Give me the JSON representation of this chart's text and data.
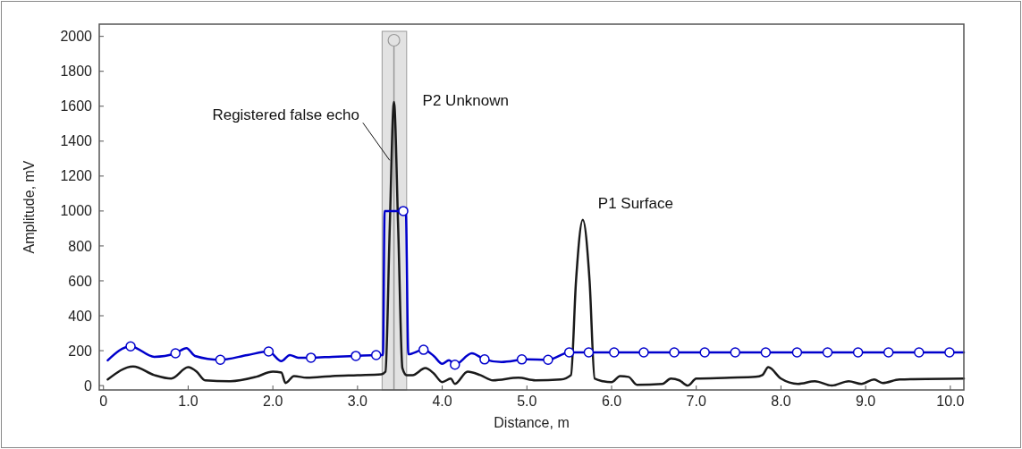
{
  "chart_data": {
    "type": "line",
    "xlabel": "Distance, m",
    "ylabel": "Amplitude, mV",
    "xlim": [
      -0.05,
      10.16
    ],
    "ylim": [
      -25,
      2070
    ],
    "xticks": [
      0,
      {
        "value": 1,
        "label": "1.0"
      },
      {
        "value": 2,
        "label": "2.0"
      },
      {
        "value": 3,
        "label": "3.0"
      },
      {
        "value": 4,
        "label": "4.0"
      },
      {
        "value": 5,
        "label": "5.0"
      },
      {
        "value": 6,
        "label": "6.0"
      },
      {
        "value": 7,
        "label": "7.0"
      },
      {
        "value": 8,
        "label": "8.0"
      },
      {
        "value": 9,
        "label": "9.0"
      },
      {
        "value": 10,
        "label": "10.0"
      }
    ],
    "yticks": [
      0,
      200,
      400,
      600,
      800,
      1000,
      1200,
      1400,
      1600,
      1800,
      2000
    ],
    "grid": false,
    "line_style": "solid",
    "bands": [
      {
        "axis": "x",
        "from": 3.29,
        "to": 3.58,
        "color": "#e2e2e2"
      }
    ],
    "ref_lines": [
      {
        "axis": "x",
        "value": 3.43,
        "color": "#999999"
      }
    ],
    "series": [
      {
        "color": "#1a1a1a",
        "marker": "none",
        "x": [
          0.05,
          0.35,
          0.6,
          0.8,
          1.0,
          1.1,
          1.2,
          1.5,
          1.8,
          2.0,
          2.1,
          2.15,
          2.25,
          2.4,
          2.7,
          3.0,
          3.28,
          3.33,
          3.38,
          3.43,
          3.48,
          3.53,
          3.58,
          3.65,
          3.8,
          3.9,
          4.0,
          4.1,
          4.15,
          4.3,
          4.45,
          4.6,
          4.9,
          5.1,
          5.4,
          5.52,
          5.58,
          5.66,
          5.74,
          5.8,
          5.9,
          6.0,
          6.1,
          6.2,
          6.3,
          6.6,
          6.7,
          6.8,
          6.9,
          7.0,
          7.4,
          7.7,
          7.78,
          7.85,
          8.0,
          8.2,
          8.4,
          8.6,
          8.8,
          8.95,
          9.1,
          9.2,
          9.4,
          10.16
        ],
        "values": [
          35,
          110,
          60,
          40,
          105,
          80,
          30,
          25,
          50,
          80,
          75,
          15,
          55,
          45,
          55,
          60,
          65,
          80,
          900,
          1625,
          900,
          100,
          60,
          60,
          100,
          70,
          20,
          40,
          10,
          80,
          60,
          30,
          45,
          30,
          35,
          60,
          600,
          950,
          600,
          40,
          25,
          20,
          55,
          50,
          5,
          10,
          40,
          30,
          0,
          40,
          45,
          50,
          60,
          105,
          40,
          10,
          25,
          0,
          25,
          10,
          35,
          15,
          35,
          40
        ]
      },
      {
        "color": "#0000cc",
        "marker": "none",
        "x": [
          0.05,
          0.32,
          0.6,
          0.85,
          0.98,
          1.08,
          1.38,
          1.7,
          1.95,
          2.1,
          2.2,
          2.3,
          2.45,
          2.7,
          2.98,
          3.22,
          3.3,
          3.32,
          3.54,
          3.57,
          3.6,
          3.78,
          3.9,
          4.0,
          4.08,
          4.15,
          4.35,
          4.5,
          4.7,
          5.0,
          5.25,
          5.5,
          5.73,
          10.16
        ],
        "values": [
          145,
          225,
          165,
          185,
          215,
          170,
          148,
          175,
          195,
          140,
          175,
          160,
          160,
          165,
          170,
          175,
          175,
          1000,
          1000,
          1000,
          180,
          205,
          170,
          125,
          145,
          120,
          185,
          150,
          135,
          150,
          148,
          190,
          190,
          190
        ]
      },
      {
        "type": "scatter",
        "color": "#0000cc",
        "marker": "circle",
        "x": [
          0.32,
          0.85,
          1.38,
          1.95,
          2.45,
          2.98,
          3.22,
          3.54,
          3.78,
          4.15,
          4.5,
          4.94,
          5.25,
          5.5,
          5.73,
          6.03,
          6.38,
          6.74,
          7.1,
          7.46,
          7.82,
          8.19,
          8.55,
          8.91,
          9.27,
          9.63,
          9.99
        ],
        "values": [
          225,
          185,
          148,
          195,
          160,
          170,
          175,
          1000,
          205,
          120,
          150,
          150,
          148,
          190,
          190,
          190,
          190,
          190,
          190,
          190,
          190,
          190,
          190,
          190,
          190,
          190,
          190
        ]
      }
    ],
    "annotations": [
      {
        "text": "Registered false echo",
        "x": 3.38,
        "y": 1290
      },
      {
        "text": "P2 Unknown",
        "x": 3.43,
        "y": 1625
      },
      {
        "text": "P1 Surface",
        "x": 5.66,
        "y": 950
      }
    ]
  }
}
